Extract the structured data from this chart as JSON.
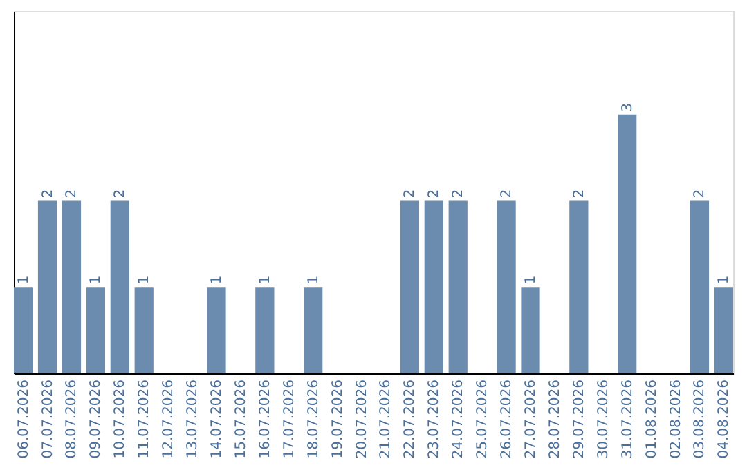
{
  "chart_data": {
    "type": "bar",
    "categories": [
      "06.07.2026",
      "07.07.2026",
      "08.07.2026",
      "09.07.2026",
      "10.07.2026",
      "11.07.2026",
      "12.07.2026",
      "13.07.2026",
      "14.07.2026",
      "15.07.2026",
      "16.07.2026",
      "17.07.2026",
      "18.07.2026",
      "19.07.2026",
      "20.07.2026",
      "21.07.2026",
      "22.07.2026",
      "23.07.2026",
      "24.07.2026",
      "25.07.2026",
      "26.07.2026",
      "27.07.2026",
      "28.07.2026",
      "29.07.2026",
      "30.07.2026",
      "31.07.2026",
      "01.08.2026",
      "02.08.2026",
      "03.08.2026",
      "04.08.2026"
    ],
    "values": [
      1,
      2,
      2,
      1,
      2,
      1,
      0,
      0,
      1,
      0,
      1,
      0,
      1,
      0,
      0,
      0,
      2,
      2,
      2,
      0,
      2,
      1,
      0,
      2,
      0,
      3,
      0,
      0,
      2,
      1
    ],
    "value_labels": [
      "1",
      "2",
      "2",
      "1",
      "2",
      "1",
      null,
      null,
      "1",
      null,
      "1",
      null,
      "1",
      null,
      null,
      null,
      "2",
      "2",
      "2",
      null,
      "2",
      "1",
      null,
      "2",
      null,
      "3",
      null,
      null,
      "2",
      "1"
    ],
    "color": "#6b8cae",
    "ylim": [
      0,
      4.2
    ],
    "tick_labels": "x",
    "grid": false
  }
}
